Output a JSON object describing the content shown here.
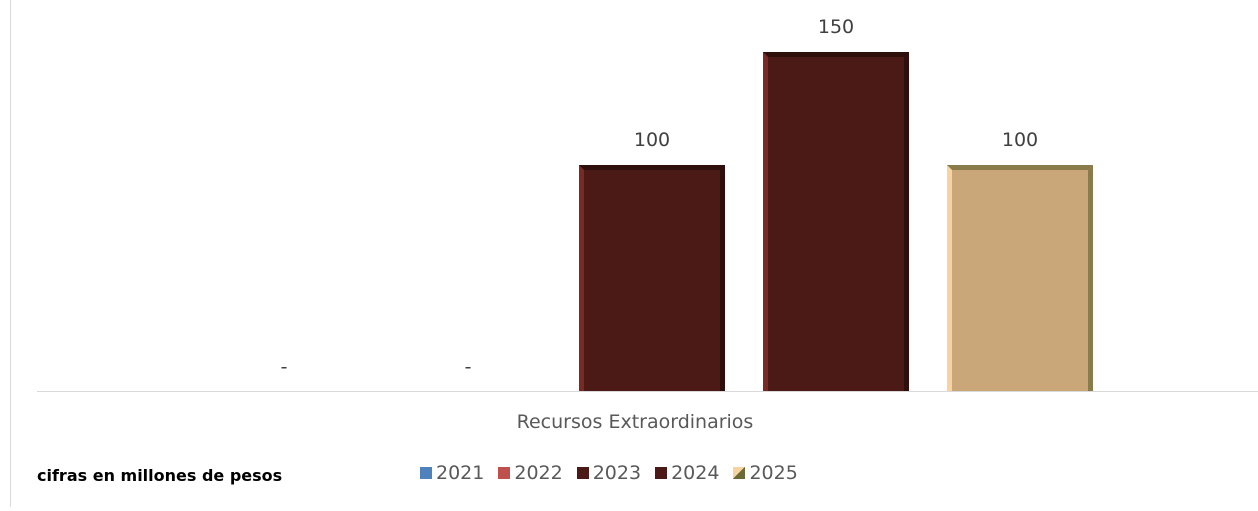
{
  "chart_data": {
    "type": "bar",
    "categories": [
      "Recursos Extraordinarios"
    ],
    "series": [
      {
        "name": "2021",
        "values": [
          0
        ],
        "label": "-",
        "color": "#4f81bd"
      },
      {
        "name": "2022",
        "values": [
          0
        ],
        "label": "-",
        "color": "#c0504d"
      },
      {
        "name": "2023",
        "values": [
          100
        ],
        "label": "100",
        "color": "#4b1a16"
      },
      {
        "name": "2024",
        "values": [
          150
        ],
        "label": "150",
        "color": "#4b1a16"
      },
      {
        "name": "2025",
        "values": [
          100
        ],
        "label": "100",
        "color": "#c9a779"
      }
    ],
    "ylim": [
      0,
      150
    ],
    "grid": false,
    "legend": "bottom",
    "note": "cifras en millones de pesos"
  }
}
